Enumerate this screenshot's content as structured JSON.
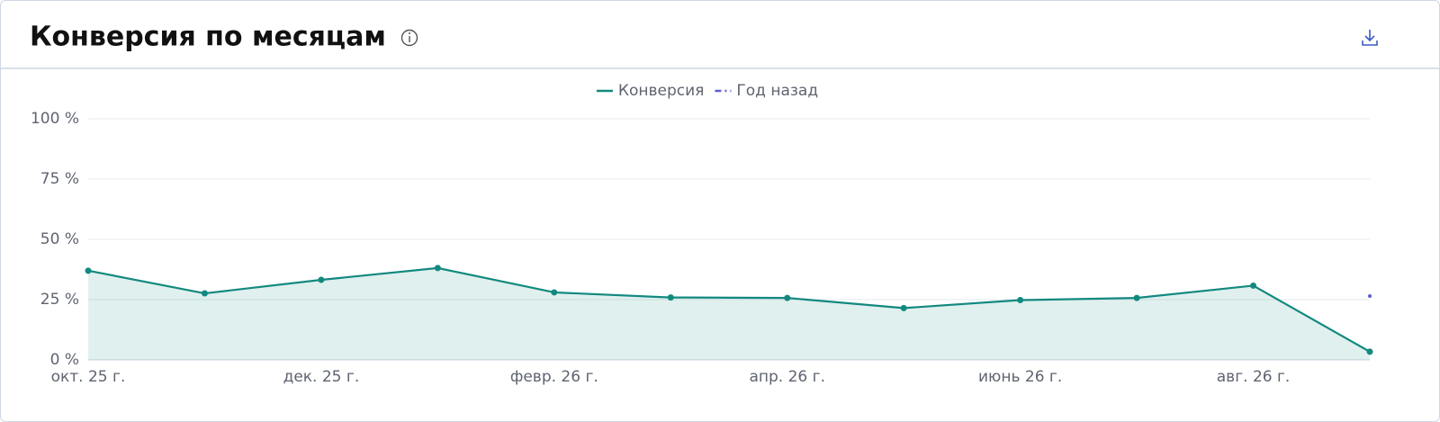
{
  "chart_data": {
    "type": "line",
    "title": "Конверсия по месяцам",
    "categories": [
      "окт. 25 г.",
      null,
      "дек. 25 г.",
      null,
      "февр. 26 г.",
      null,
      "апр. 26 г.",
      null,
      "июнь 26 г.",
      null,
      "авг. 26 г.",
      null
    ],
    "series": [
      {
        "name": "Конверсия",
        "color": "#12897f",
        "values": [
          37,
          27.6,
          33.2,
          38.1,
          28,
          25.9,
          25.7,
          21.5,
          24.8,
          25.7,
          30.8,
          3.4
        ]
      },
      {
        "name": "Год назад",
        "color": "#5a5fd6",
        "values": [
          null,
          null,
          null,
          null,
          null,
          null,
          null,
          null,
          null,
          null,
          null,
          26.5
        ]
      }
    ],
    "ylim": [
      0,
      100
    ],
    "yticks": [
      {
        "value": 0,
        "label": "0 %"
      },
      {
        "value": 25,
        "label": "25 %"
      },
      {
        "value": 50,
        "label": "50 %"
      },
      {
        "value": 75,
        "label": "75 %"
      },
      {
        "value": 100,
        "label": "100 %"
      }
    ],
    "grid": true
  }
}
